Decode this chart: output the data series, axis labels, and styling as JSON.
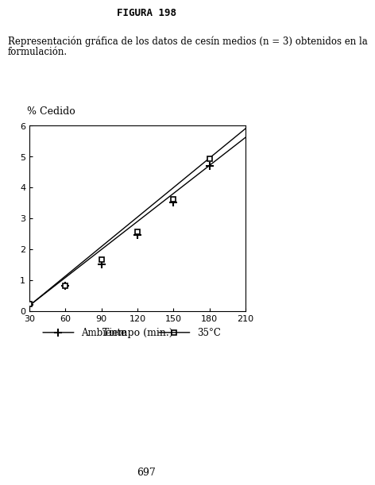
{
  "title": "FIGURA 198",
  "description_line1": "Representación gráfica de los datos de cesín medios (n = 3) obtenidos en la",
  "description_line2": "formulación.",
  "xlabel": "Tiempo (min.)",
  "ylabel": "% Cedido",
  "xlim": [
    30,
    210
  ],
  "ylim": [
    0,
    6
  ],
  "xticks": [
    30,
    60,
    90,
    120,
    150,
    180,
    210
  ],
  "yticks": [
    0,
    1,
    2,
    3,
    4,
    5,
    6
  ],
  "ambiente_x": [
    30,
    60,
    90,
    120,
    150,
    180
  ],
  "ambiente_y": [
    0.2,
    0.8,
    1.5,
    2.45,
    3.5,
    4.7
  ],
  "temp35_x": [
    30,
    60,
    90,
    120,
    150,
    180
  ],
  "temp35_y": [
    0.22,
    0.82,
    1.65,
    2.55,
    3.6,
    4.92
  ],
  "line_ambiente_slope": 0.0302,
  "line_ambiente_intercept": -0.73,
  "line_35_slope": 0.0318,
  "line_35_intercept": -0.78,
  "background_color": "#ffffff",
  "page_number": "697",
  "title_fontsize": 9,
  "desc_fontsize": 8.5,
  "tick_fontsize": 8,
  "label_fontsize": 9,
  "legend_fontsize": 8.5
}
